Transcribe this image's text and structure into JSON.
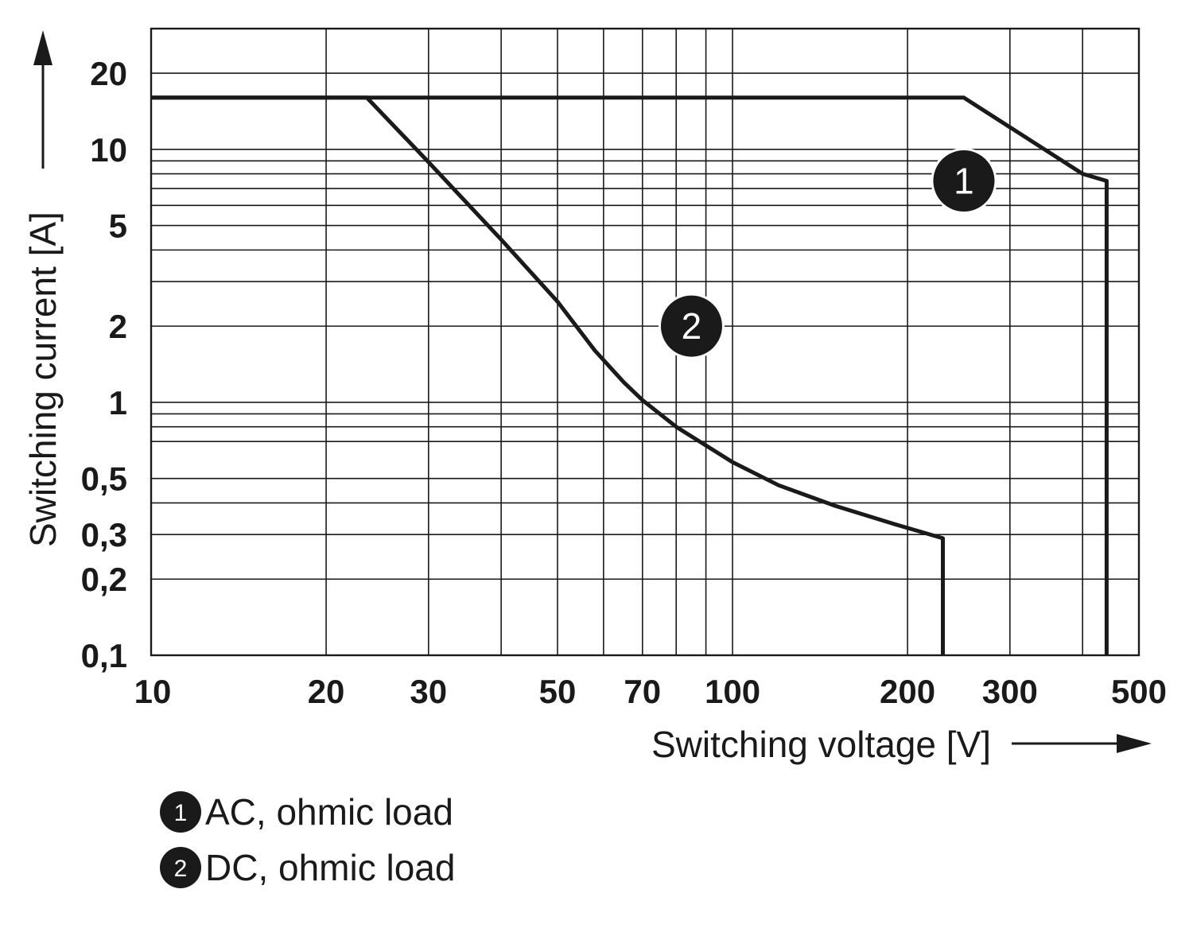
{
  "chart_data": {
    "type": "line",
    "x_scale": "log",
    "y_scale": "log",
    "xlabel": "Switching voltage [V]",
    "ylabel": "Switching current [A]",
    "xlim": [
      10,
      500
    ],
    "ylim": [
      0.1,
      30
    ],
    "x_ticks": [
      {
        "value": 10,
        "label": "10"
      },
      {
        "value": 20,
        "label": "20"
      },
      {
        "value": 30,
        "label": "30"
      },
      {
        "value": 50,
        "label": "50"
      },
      {
        "value": 70,
        "label": "70"
      },
      {
        "value": 100,
        "label": "100"
      },
      {
        "value": 200,
        "label": "200"
      },
      {
        "value": 300,
        "label": "300"
      },
      {
        "value": 500,
        "label": "500"
      }
    ],
    "y_ticks": [
      {
        "value": 0.1,
        "label": "0,1"
      },
      {
        "value": 0.2,
        "label": "0,2"
      },
      {
        "value": 0.3,
        "label": "0,3"
      },
      {
        "value": 0.5,
        "label": "0,5"
      },
      {
        "value": 1,
        "label": "1"
      },
      {
        "value": 2,
        "label": "2"
      },
      {
        "value": 5,
        "label": "5"
      },
      {
        "value": 10,
        "label": "10"
      },
      {
        "value": 20,
        "label": "20"
      }
    ],
    "x_grid": [
      10,
      20,
      30,
      40,
      50,
      60,
      70,
      80,
      90,
      100,
      200,
      300,
      400,
      500
    ],
    "y_grid": [
      0.1,
      0.2,
      0.3,
      0.4,
      0.5,
      0.7,
      0.8,
      0.9,
      1,
      2,
      3,
      4,
      5,
      6,
      7,
      8,
      9,
      10,
      20,
      30
    ],
    "grid": true,
    "series": [
      {
        "marker": "1",
        "marker_at": [
          250,
          7.5
        ],
        "points": [
          [
            10,
            16
          ],
          [
            250,
            16
          ],
          [
            400,
            8
          ],
          [
            440,
            7.5
          ],
          [
            440,
            0.1
          ]
        ]
      },
      {
        "marker": "2",
        "marker_at": [
          85,
          2.0
        ],
        "points": [
          [
            10,
            16
          ],
          [
            23.5,
            16
          ],
          [
            30,
            8.9
          ],
          [
            40,
            4.4
          ],
          [
            50,
            2.5
          ],
          [
            58,
            1.6
          ],
          [
            65,
            1.2
          ],
          [
            70,
            1.02
          ],
          [
            80,
            0.8
          ],
          [
            100,
            0.58
          ],
          [
            120,
            0.47
          ],
          [
            150,
            0.39
          ],
          [
            190,
            0.33
          ],
          [
            230,
            0.29
          ],
          [
            230,
            0.1
          ]
        ]
      }
    ],
    "legend": [
      {
        "number": "1",
        "text": "AC, ohmic load"
      },
      {
        "number": "2",
        "text": "DC, ohmic load"
      }
    ],
    "legend_position": "bottom-left"
  }
}
